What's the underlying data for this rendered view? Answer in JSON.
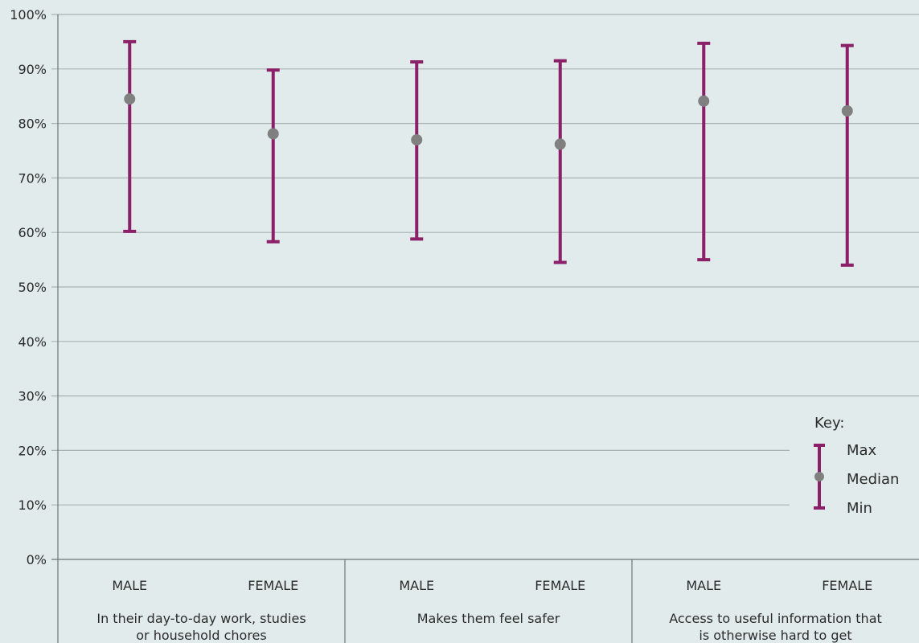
{
  "chart_data": {
    "type": "error-bar",
    "ylim": [
      0,
      100
    ],
    "yticks": [
      "0%",
      "10%",
      "20%",
      "30%",
      "40%",
      "50%",
      "60%",
      "70%",
      "80%",
      "90%",
      "100%"
    ],
    "groups": [
      {
        "label_lines": [
          "In their day-to-day work, studies",
          "or household chores"
        ],
        "categories": [
          {
            "label": "MALE",
            "min": 60.2,
            "median": 84.5,
            "max": 95.0
          },
          {
            "label": "FEMALE",
            "min": 58.3,
            "median": 78.1,
            "max": 89.8
          }
        ]
      },
      {
        "label_lines": [
          "Makes them feel safer"
        ],
        "categories": [
          {
            "label": "MALE",
            "min": 58.8,
            "median": 77.0,
            "max": 91.3
          },
          {
            "label": "FEMALE",
            "min": 54.5,
            "median": 76.2,
            "max": 91.5
          }
        ]
      },
      {
        "label_lines": [
          "Access to useful information that",
          "is otherwise hard to get"
        ],
        "categories": [
          {
            "label": "MALE",
            "min": 55.0,
            "median": 84.1,
            "max": 94.7
          },
          {
            "label": "FEMALE",
            "min": 54.0,
            "median": 82.3,
            "max": 94.3
          }
        ]
      }
    ],
    "legend": {
      "title": "Key:",
      "max_label": "Max",
      "median_label": "Median",
      "min_label": "Min",
      "placement": "bottom-right"
    },
    "colors": {
      "bar": "#8c2068",
      "median": "#808080",
      "grid": "#a9b3b3",
      "background": "#e1ebeb"
    },
    "grid": true
  }
}
